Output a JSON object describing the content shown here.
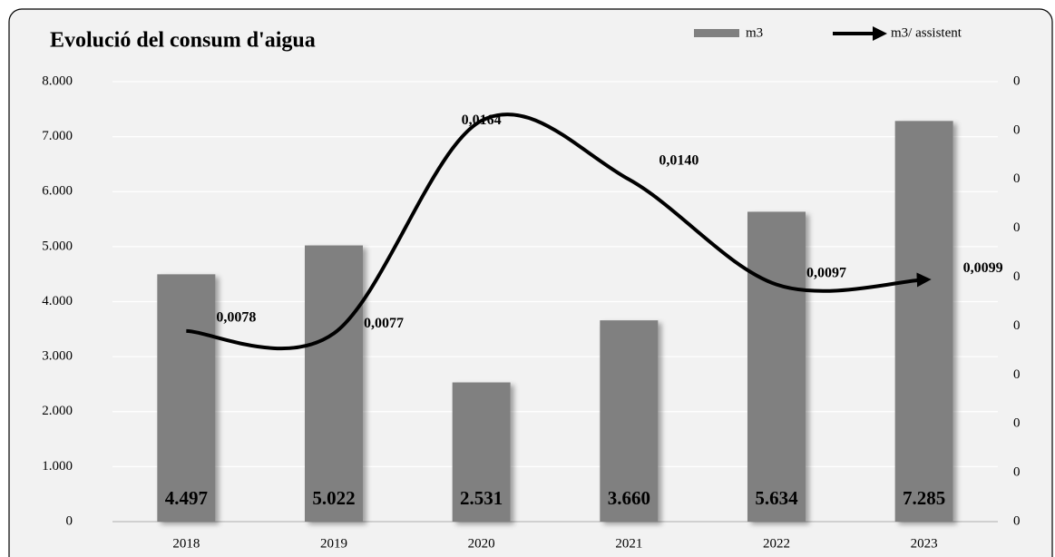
{
  "chart_data": {
    "type": "bar",
    "title": "Evolució del consum d'aigua",
    "categories": [
      "2018",
      "2019",
      "2020",
      "2021",
      "2022",
      "2023"
    ],
    "series": [
      {
        "name": "m3",
        "type": "bar",
        "color": "#808080",
        "values": [
          4497,
          5022,
          2531,
          3660,
          5634,
          7285
        ],
        "value_labels": [
          "4.497",
          "5.022",
          "2.531",
          "3.660",
          "5.634",
          "7.285"
        ]
      },
      {
        "name": "m3/ assistent",
        "type": "line",
        "axis": "y2",
        "color": "#000000",
        "values": [
          0.0078,
          0.0077,
          0.0164,
          0.014,
          0.0097,
          0.0099
        ],
        "value_labels": [
          "0,0078",
          "0,0077",
          "0,0164",
          "0,0140",
          "0,0097",
          "0,0099"
        ]
      }
    ],
    "ylim": [
      0,
      8000
    ],
    "yticks": [
      0,
      {
        "value": 1000,
        "label": "1.000"
      },
      {
        "value": 2000,
        "label": "2.000"
      },
      {
        "value": 3000,
        "label": "3.000"
      },
      {
        "value": 4000,
        "label": "4.000"
      },
      {
        "value": 5000,
        "label": "5.000"
      },
      {
        "value": 6000,
        "label": "6.000"
      },
      {
        "value": 7000,
        "label": "7.000"
      },
      {
        "value": 8000,
        "label": "8.000"
      }
    ],
    "y2lim": [
      0,
      0.018
    ],
    "y2ticks": [
      0,
      {
        "value": 0.002,
        "label": "0"
      },
      {
        "value": 0.004,
        "label": "0"
      },
      {
        "value": 0.006,
        "label": "0"
      },
      {
        "value": 0.008,
        "label": "0"
      },
      {
        "value": 0.01,
        "label": "0"
      },
      {
        "value": 0.012,
        "label": "0"
      },
      {
        "value": 0.014,
        "label": "0"
      },
      {
        "value": 0.016,
        "label": "0"
      },
      {
        "value": 0.018,
        "label": "0"
      }
    ],
    "grid": true,
    "legend": "top-right"
  }
}
